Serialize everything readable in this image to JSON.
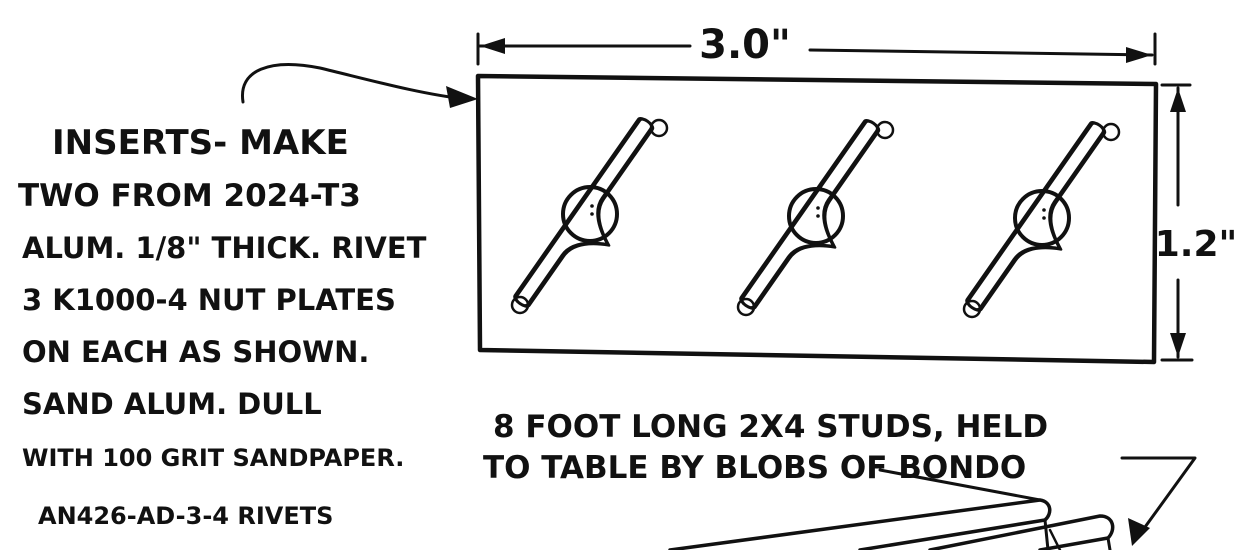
{
  "dimensions": {
    "width_label": "3.0\"",
    "height_label": "1.2\""
  },
  "notes": {
    "inserts": [
      "INSERTS- MAKE",
      "TWO FROM 2024-T3",
      "ALUM. 1/8\" THICK. RIVET",
      "3 K1000-4 NUT PLATES",
      "ON EACH AS SHOWN.",
      "SAND ALUM. DULL",
      "WITH 100 GRIT SANDPAPER."
    ],
    "rivets": "AN426-AD-3-4 RIVETS",
    "studs": [
      "8 FOOT LONG 2X4 STUDS, HELD",
      "TO TABLE BY BLOBS OF BONDO"
    ]
  },
  "nut_plates": [
    {
      "name": "K1000-4"
    },
    {
      "name": "K1000-4"
    },
    {
      "name": "K1000-4"
    }
  ],
  "colors": {
    "ink": "#111111",
    "paper": "#ffffff"
  }
}
